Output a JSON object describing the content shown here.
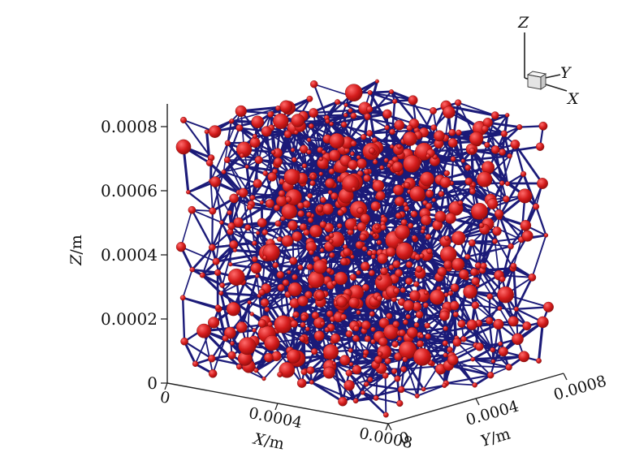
{
  "chart_data": {
    "type": "scatter",
    "subtype": "3d pore-network (pore spheres connected by throat segments)",
    "axes": {
      "x": {
        "label": "X",
        "unit": "m",
        "range": [
          0,
          0.0008
        ],
        "ticks": [
          "0",
          "0.0004",
          "0.0008"
        ]
      },
      "y": {
        "label": "Y",
        "unit": "m",
        "range": [
          0,
          0.0008
        ],
        "ticks": [
          "0",
          "0.0004",
          "0.0008"
        ]
      },
      "z": {
        "label": "Z",
        "unit": "m",
        "range": [
          0,
          0.0008
        ],
        "ticks": [
          "0",
          "0.0002",
          "0.0004",
          "0.0006",
          "0.0008"
        ]
      }
    },
    "orientation_triad": [
      "X",
      "Y",
      "Z"
    ],
    "colors": {
      "pores": "#d41c1c",
      "throats": "#1b1a78",
      "axes": "#222222"
    },
    "grid": false,
    "legend": "none"
  }
}
